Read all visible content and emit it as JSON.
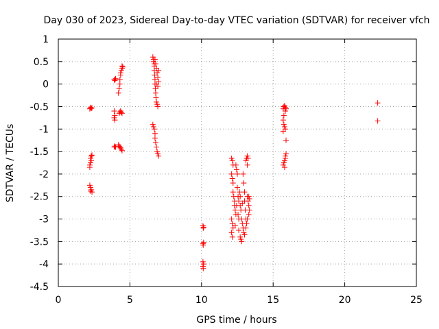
{
  "chart_data": {
    "type": "scatter",
    "title": "Day 030 of 2023, Sidereal Day-to-day VTEC variation (SDTVAR) for receiver vfch",
    "xlabel": "GPS time / hours",
    "ylabel": "SDTVAR / TECUs",
    "xlim": [
      0,
      25
    ],
    "ylim": [
      -4.5,
      1
    ],
    "xticks": [
      0,
      5,
      10,
      15,
      20,
      25
    ],
    "yticks": [
      1,
      0.5,
      0,
      -0.5,
      -1,
      -1.5,
      -2,
      -2.5,
      -3,
      -3.5,
      -4,
      -4.5
    ],
    "xtick_labels": [
      "0",
      "5",
      "10",
      "15",
      "20",
      "25"
    ],
    "ytick_labels": [
      "1",
      "0.5",
      "0",
      "-0.5",
      "-1",
      "-1.5",
      "-2",
      "-2.5",
      "-3",
      "-3.5",
      "-4",
      "-4.5"
    ],
    "grid": true,
    "marker": "+",
    "marker_color": "#ff0000",
    "series": [
      {
        "name": "SDTVAR",
        "points": [
          [
            2.2,
            -0.55
          ],
          [
            2.25,
            -0.52
          ],
          [
            2.3,
            -0.54
          ],
          [
            2.35,
            -0.53
          ],
          [
            2.2,
            -1.8
          ],
          [
            2.25,
            -1.75
          ],
          [
            2.25,
            -1.65
          ],
          [
            2.3,
            -1.6
          ],
          [
            2.35,
            -1.58
          ],
          [
            2.3,
            -1.7
          ],
          [
            2.2,
            -1.85
          ],
          [
            2.2,
            -2.25
          ],
          [
            2.25,
            -2.3
          ],
          [
            2.3,
            -2.35
          ],
          [
            2.35,
            -2.4
          ],
          [
            2.25,
            -2.38
          ],
          [
            3.9,
            0.1
          ],
          [
            3.95,
            0.08
          ],
          [
            4.0,
            0.12
          ],
          [
            3.9,
            -0.6
          ],
          [
            3.95,
            -0.7
          ],
          [
            3.9,
            -0.75
          ],
          [
            3.95,
            -0.8
          ],
          [
            3.9,
            -1.4
          ],
          [
            3.95,
            -1.38
          ],
          [
            4.0,
            -1.4
          ],
          [
            4.2,
            -0.2
          ],
          [
            4.25,
            -0.1
          ],
          [
            4.3,
            0.0
          ],
          [
            4.3,
            0.1
          ],
          [
            4.35,
            0.2
          ],
          [
            4.35,
            0.25
          ],
          [
            4.4,
            0.3
          ],
          [
            4.45,
            0.35
          ],
          [
            4.45,
            0.4
          ],
          [
            4.5,
            0.38
          ],
          [
            4.25,
            -0.65
          ],
          [
            4.3,
            -0.62
          ],
          [
            4.35,
            -0.6
          ],
          [
            4.4,
            -0.63
          ],
          [
            4.45,
            -0.65
          ],
          [
            4.2,
            -1.35
          ],
          [
            4.25,
            -1.38
          ],
          [
            4.3,
            -1.4
          ],
          [
            4.35,
            -1.42
          ],
          [
            4.4,
            -1.45
          ],
          [
            4.45,
            -1.48
          ],
          [
            6.6,
            0.6
          ],
          [
            6.65,
            0.55
          ],
          [
            6.65,
            0.5
          ],
          [
            6.7,
            0.45
          ],
          [
            6.7,
            0.4
          ],
          [
            6.7,
            0.3
          ],
          [
            6.72,
            0.2
          ],
          [
            6.75,
            0.1
          ],
          [
            6.75,
            0.0
          ],
          [
            6.78,
            -0.1
          ],
          [
            6.8,
            -0.2
          ],
          [
            6.82,
            -0.3
          ],
          [
            6.85,
            -0.4
          ],
          [
            6.9,
            -0.45
          ],
          [
            6.95,
            -0.5
          ],
          [
            6.75,
            0.55
          ],
          [
            6.8,
            0.45
          ],
          [
            6.85,
            0.35
          ],
          [
            6.9,
            0.25
          ],
          [
            6.95,
            0.15
          ],
          [
            7.0,
            0.05
          ],
          [
            6.95,
            -0.05
          ],
          [
            7.0,
            0.3
          ],
          [
            6.85,
            0.0
          ],
          [
            6.6,
            -0.9
          ],
          [
            6.65,
            -0.95
          ],
          [
            6.7,
            -1.0
          ],
          [
            6.75,
            -1.1
          ],
          [
            6.75,
            -1.2
          ],
          [
            6.8,
            -1.3
          ],
          [
            6.85,
            -1.4
          ],
          [
            6.9,
            -1.5
          ],
          [
            6.95,
            -1.55
          ],
          [
            7.0,
            -1.6
          ],
          [
            10.1,
            -3.15
          ],
          [
            10.15,
            -3.18
          ],
          [
            10.12,
            -3.2
          ],
          [
            10.1,
            -3.55
          ],
          [
            10.15,
            -3.52
          ],
          [
            10.12,
            -3.58
          ],
          [
            10.1,
            -3.95
          ],
          [
            10.15,
            -4.0
          ],
          [
            10.1,
            -4.05
          ],
          [
            10.12,
            -4.1
          ],
          [
            12.1,
            -1.65
          ],
          [
            12.15,
            -1.7
          ],
          [
            12.2,
            -1.8
          ],
          [
            12.1,
            -2.0
          ],
          [
            12.15,
            -2.1
          ],
          [
            12.2,
            -2.2
          ],
          [
            12.2,
            -2.4
          ],
          [
            12.25,
            -2.5
          ],
          [
            12.3,
            -2.6
          ],
          [
            12.3,
            -2.7
          ],
          [
            12.35,
            -2.8
          ],
          [
            12.4,
            -2.9
          ],
          [
            12.1,
            -3.0
          ],
          [
            12.15,
            -3.1
          ],
          [
            12.2,
            -3.2
          ],
          [
            12.1,
            -3.3
          ],
          [
            12.15,
            -3.4
          ],
          [
            12.4,
            -1.8
          ],
          [
            12.45,
            -1.9
          ],
          [
            12.5,
            -2.0
          ],
          [
            12.5,
            -2.3
          ],
          [
            12.55,
            -2.5
          ],
          [
            12.6,
            -2.6
          ],
          [
            12.55,
            -2.9
          ],
          [
            12.6,
            -3.0
          ],
          [
            12.65,
            -2.4
          ],
          [
            12.7,
            -2.5
          ],
          [
            12.7,
            -2.7
          ],
          [
            12.75,
            -2.8
          ],
          [
            12.8,
            -3.0
          ],
          [
            12.85,
            -3.1
          ],
          [
            12.9,
            -3.2
          ],
          [
            12.95,
            -3.3
          ],
          [
            12.7,
            -3.4
          ],
          [
            12.75,
            -3.45
          ],
          [
            12.8,
            -3.5
          ],
          [
            12.9,
            -2.0
          ],
          [
            12.95,
            -2.2
          ],
          [
            13.0,
            -2.4
          ],
          [
            13.0,
            -2.6
          ],
          [
            13.05,
            -2.8
          ],
          [
            13.1,
            -3.0
          ],
          [
            13.1,
            -3.2
          ],
          [
            13.1,
            -1.7
          ],
          [
            13.15,
            -1.65
          ],
          [
            13.2,
            -1.6
          ],
          [
            13.25,
            -1.65
          ],
          [
            13.2,
            -1.8
          ],
          [
            13.2,
            -2.5
          ],
          [
            13.25,
            -2.6
          ],
          [
            13.3,
            -2.7
          ],
          [
            13.35,
            -2.8
          ],
          [
            13.3,
            -2.9
          ],
          [
            13.2,
            -3.0
          ],
          [
            13.15,
            -3.1
          ],
          [
            13.3,
            -2.5
          ],
          [
            13.35,
            -2.55
          ],
          [
            12.45,
            -2.7
          ],
          [
            12.35,
            -3.15
          ],
          [
            12.6,
            -3.25
          ],
          [
            12.85,
            -2.65
          ],
          [
            13.0,
            -3.35
          ],
          [
            15.7,
            -0.55
          ],
          [
            15.75,
            -0.5
          ],
          [
            15.8,
            -0.48
          ],
          [
            15.85,
            -0.52
          ],
          [
            15.9,
            -0.55
          ],
          [
            15.7,
            -0.8
          ],
          [
            15.75,
            -0.9
          ],
          [
            15.8,
            -0.95
          ],
          [
            15.85,
            -1.0
          ],
          [
            15.7,
            -1.05
          ],
          [
            15.75,
            -0.7
          ],
          [
            15.85,
            -0.6
          ],
          [
            15.9,
            -1.25
          ],
          [
            15.7,
            -1.8
          ],
          [
            15.75,
            -1.75
          ],
          [
            15.8,
            -1.7
          ],
          [
            15.85,
            -1.6
          ],
          [
            15.9,
            -1.55
          ],
          [
            15.8,
            -1.85
          ],
          [
            15.85,
            -1.65
          ],
          [
            22.3,
            -0.42
          ],
          [
            22.3,
            -0.82
          ]
        ]
      }
    ]
  }
}
